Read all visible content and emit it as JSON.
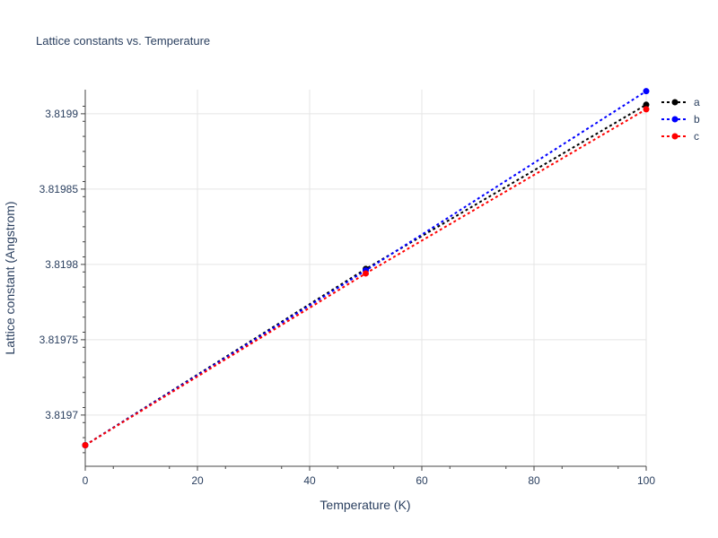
{
  "chart_data": {
    "type": "line",
    "title": "Lattice constants vs. Temperature",
    "xlabel": "Temperature (K)",
    "ylabel": "Lattice constant (Angstrom)",
    "x": [
      0,
      50,
      100
    ],
    "xlim": [
      0,
      100
    ],
    "ylim": [
      3.819666,
      3.819916
    ],
    "xticks": [
      0,
      20,
      40,
      60,
      80,
      100
    ],
    "xtick_labels": [
      "0",
      "20",
      "40",
      "60",
      "80",
      "100"
    ],
    "yticks": [
      3.8197,
      3.81975,
      3.8198,
      3.81985,
      3.8199
    ],
    "ytick_labels": [
      "3.8197",
      "3.81975",
      "3.8198",
      "3.81985",
      "3.8199"
    ],
    "grid": true,
    "legend_position": "top-right",
    "series": [
      {
        "name": "a",
        "color": "#000000",
        "values": [
          3.81968,
          3.819797,
          3.819906
        ]
      },
      {
        "name": "b",
        "color": "#0000ff",
        "values": [
          3.81968,
          3.819796,
          3.819915
        ]
      },
      {
        "name": "c",
        "color": "#ff0000",
        "values": [
          3.81968,
          3.819794,
          3.819903
        ]
      }
    ]
  }
}
